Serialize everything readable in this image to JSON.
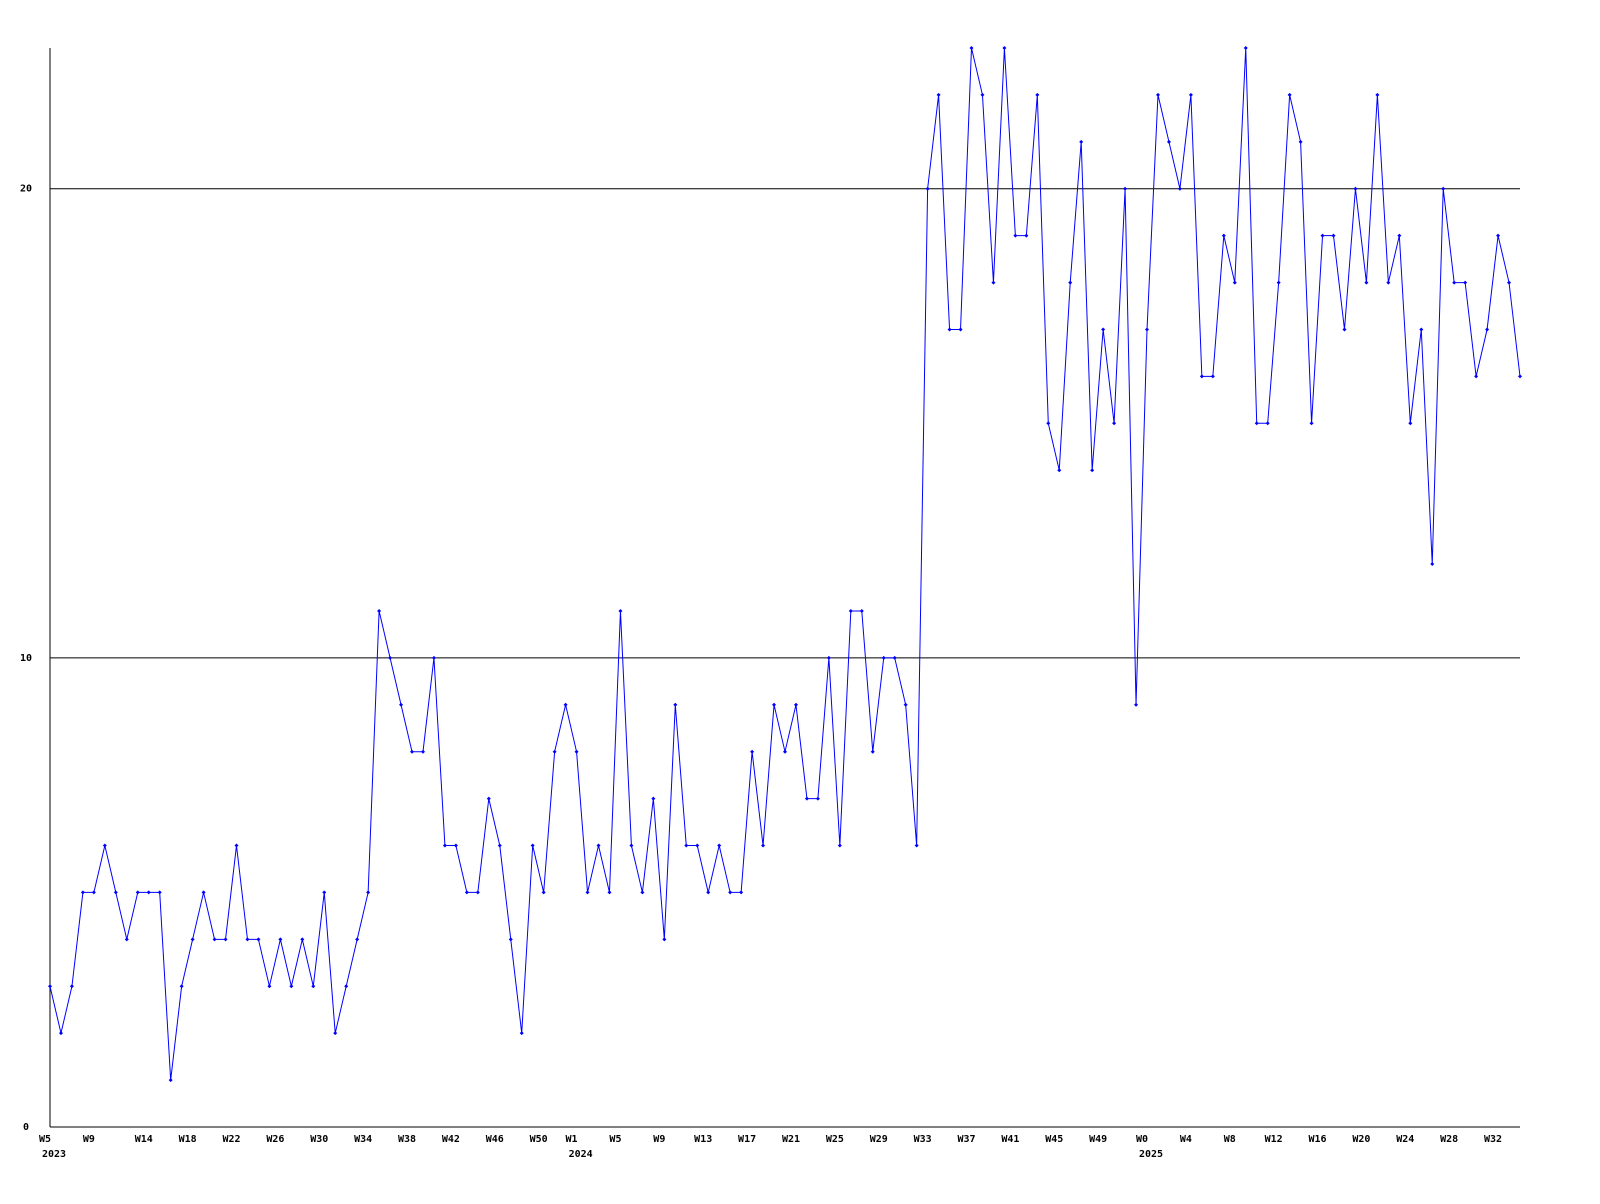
{
  "chart_data": {
    "type": "line",
    "categories": [
      "W5",
      null,
      null,
      null,
      "W9",
      null,
      null,
      null,
      null,
      "W14",
      null,
      null,
      null,
      "W18",
      null,
      null,
      null,
      "W22",
      null,
      null,
      null,
      "W26",
      null,
      null,
      null,
      "W30",
      null,
      null,
      null,
      "W34",
      null,
      null,
      null,
      "W38",
      null,
      null,
      null,
      "W42",
      null,
      null,
      null,
      "W46",
      null,
      null,
      null,
      "W50",
      null,
      null,
      "W1",
      null,
      null,
      null,
      "W5",
      null,
      null,
      null,
      "W9",
      null,
      null,
      null,
      "W13",
      null,
      null,
      null,
      "W17",
      null,
      null,
      null,
      "W21",
      null,
      null,
      null,
      "W25",
      null,
      null,
      null,
      "W29",
      null,
      null,
      null,
      "W33",
      null,
      null,
      null,
      "W37",
      null,
      null,
      null,
      "W41",
      null,
      null,
      null,
      "W45",
      null,
      null,
      null,
      "W49",
      null,
      null,
      null,
      "W0",
      null,
      null,
      null,
      "W4",
      null,
      null,
      null,
      "W8",
      null,
      null,
      null,
      "W12",
      null,
      null,
      null,
      "W16",
      null,
      null,
      null,
      "W20",
      null,
      null,
      null,
      "W24",
      null,
      null,
      null,
      "W28",
      null,
      null,
      null,
      "W32",
      null,
      null
    ],
    "years": [
      {
        "label": "2023",
        "at": 0
      },
      {
        "label": "2024",
        "at": 48
      },
      {
        "label": "2025",
        "at": 100
      }
    ],
    "series": [
      {
        "color": "#0000ff",
        "values": [
          3,
          2,
          3,
          5,
          5,
          6,
          5,
          4,
          5,
          5,
          5,
          1,
          3,
          4,
          5,
          4,
          4,
          6,
          4,
          4,
          3,
          4,
          3,
          4,
          3,
          5,
          2,
          3,
          4,
          5,
          11,
          10,
          9,
          8,
          8,
          10,
          6,
          6,
          5,
          5,
          7,
          6,
          4,
          2,
          6,
          5,
          8,
          9,
          8,
          5,
          6,
          5,
          11,
          6,
          5,
          7,
          4,
          9,
          6,
          6,
          5,
          6,
          5,
          5,
          8,
          6,
          9,
          8,
          9,
          7,
          7,
          10,
          6,
          11,
          11,
          8,
          10,
          10,
          9,
          6,
          20,
          22,
          17,
          17,
          23,
          22,
          18,
          23,
          19,
          19,
          22,
          15,
          14,
          18,
          21,
          14,
          17,
          15,
          20,
          9,
          17,
          22,
          21,
          20,
          22,
          16,
          16,
          19,
          18,
          23,
          15,
          15,
          18,
          22,
          21,
          15,
          19,
          19,
          17,
          20,
          18,
          22,
          18,
          19,
          15,
          17,
          12,
          20,
          18,
          18,
          16,
          17,
          19,
          18,
          16
        ]
      }
    ],
    "ylim": [
      0,
      23
    ],
    "yticks": [
      0,
      10,
      20
    ],
    "grid": true
  }
}
